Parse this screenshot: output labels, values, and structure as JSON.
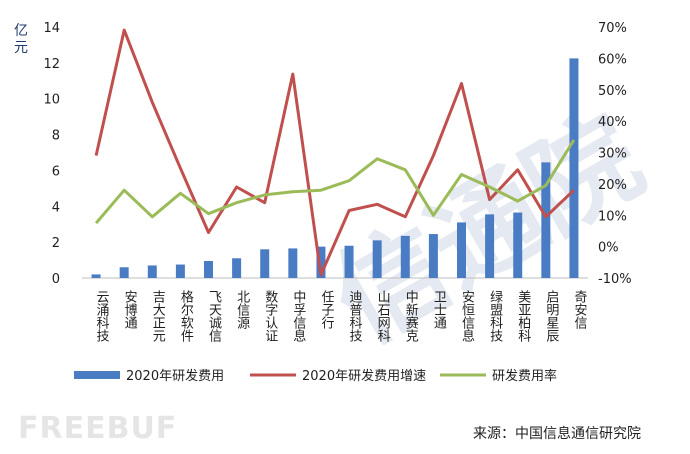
{
  "chart_data": {
    "type": "bar",
    "categories": [
      "云涌科技",
      "安博通",
      "吉大正元",
      "格尔软件",
      "飞天诚信",
      "北信源",
      "数字认证",
      "中孚信息",
      "任子行",
      "迪普科技",
      "山石网科",
      "中新赛克",
      "卫士通",
      "安恒信息",
      "绿盟科技",
      "美亚柏科",
      "启明星辰",
      "奇安信"
    ],
    "left_axis": {
      "unit_label": "亿元",
      "ylim": [
        0,
        14
      ],
      "ticks": [
        0,
        2,
        4,
        6,
        8,
        10,
        12,
        14
      ]
    },
    "right_axis": {
      "ylim": [
        -10,
        70
      ],
      "ticks": [
        "-10%",
        "0%",
        "10%",
        "20%",
        "30%",
        "40%",
        "50%",
        "60%",
        "70%"
      ]
    },
    "series": [
      {
        "name": "2020年研发费用",
        "kind": "bar",
        "axis": "left",
        "color": "#4a7cc4",
        "values": [
          0.2,
          0.6,
          0.7,
          0.75,
          0.95,
          1.1,
          1.6,
          1.65,
          1.75,
          1.8,
          2.1,
          2.35,
          2.45,
          3.1,
          3.55,
          3.65,
          6.45,
          12.25
        ]
      },
      {
        "name": "2020年研发费用增速",
        "kind": "line",
        "axis": "right",
        "color": "#c0504d",
        "values": [
          29,
          69,
          46,
          25,
          4.5,
          19,
          14,
          55,
          -9,
          11.5,
          13.5,
          9.5,
          29,
          52,
          15,
          24.5,
          9.5,
          18
        ]
      },
      {
        "name": "研发费用率",
        "kind": "line",
        "axis": "right",
        "color": "#9bbb59",
        "values": [
          7.5,
          18,
          9.5,
          17,
          10.5,
          14,
          16.5,
          17.5,
          18,
          21,
          28,
          24.5,
          10,
          23,
          19,
          14.5,
          19.5,
          34
        ]
      }
    ]
  },
  "source_text": "来源：中国信息通信研究院",
  "watermark": {
    "text": "信通院",
    "brand": "FREEBUF"
  }
}
